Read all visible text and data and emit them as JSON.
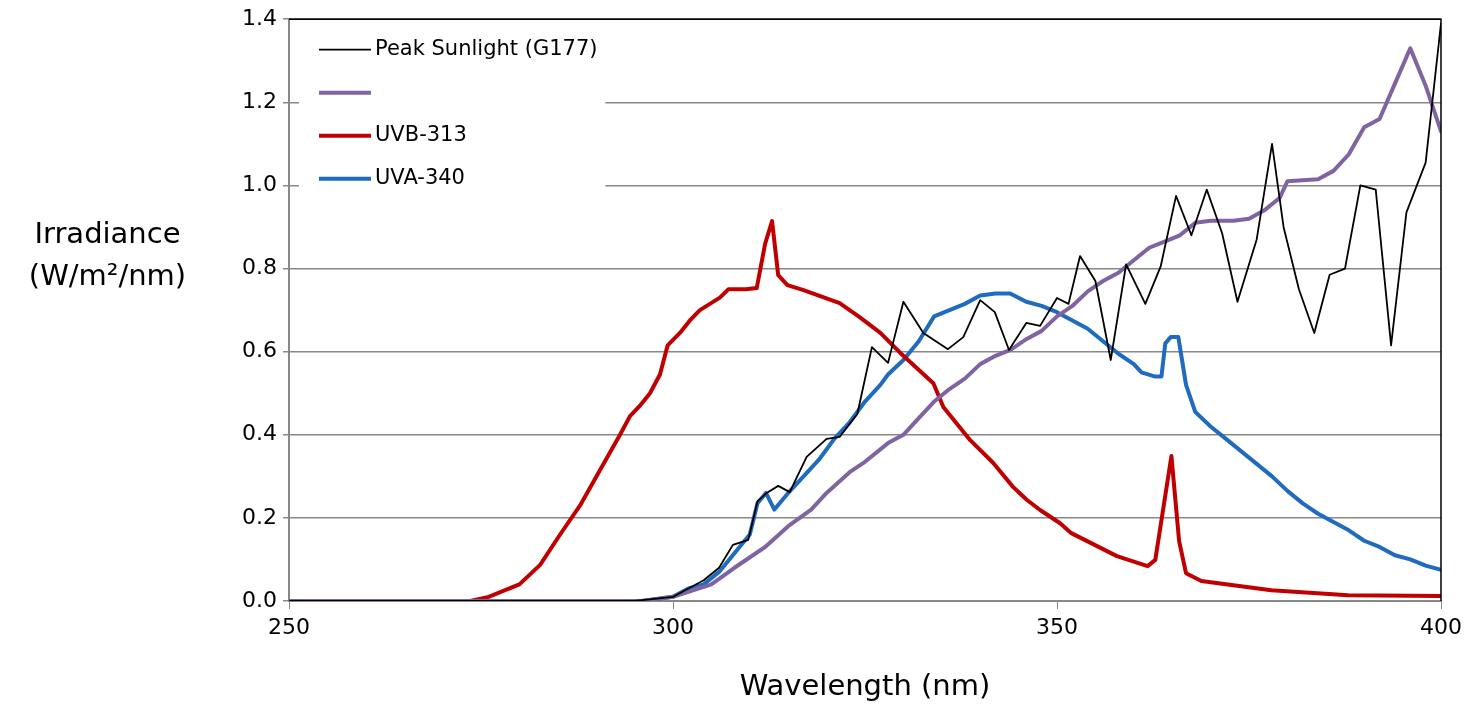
{
  "chart_data": {
    "type": "line",
    "xlabel": "Wavelength (nm)",
    "ylabel": "Irradiance (W/m²/nm)",
    "xlim": [
      250,
      400
    ],
    "xticks": [
      250,
      300,
      350,
      400
    ],
    "ylim": [
      0,
      1.4
    ],
    "yticks": [
      {
        "value": 0,
        "label": "0.0"
      },
      0.2,
      0.4,
      0.6,
      0.8,
      {
        "value": 1,
        "label": "1.0"
      },
      1.2,
      1.4
    ],
    "grid": "y",
    "legend": "top left",
    "marker": "none",
    "line_style": "solid",
    "series": [
      {
        "name": "Peak Sunlight (G177)",
        "color": "#000000",
        "x": [
          250,
          295,
          300,
          302,
          304,
          306,
          307.8,
          309.8,
          311,
          312.2,
          313.7,
          315.2,
          317.4,
          320,
          321.7,
          324,
          325.9,
          328,
          330,
          332.6,
          335.8,
          337.8,
          340,
          341.9,
          343.75,
          346,
          347.8,
          350,
          351.5,
          353,
          355,
          357,
          359,
          361.5,
          363.5,
          365.5,
          367.5,
          369.5,
          371.5,
          373.5,
          376,
          378,
          379.5,
          381.5,
          383.5,
          385.5,
          387.5,
          389.5,
          391.5,
          393.5,
          395.5,
          398,
          400
        ],
        "values": [
          0,
          0,
          0.01,
          0.03,
          0.05,
          0.08,
          0.135,
          0.147,
          0.24,
          0.26,
          0.277,
          0.262,
          0.347,
          0.39,
          0.395,
          0.45,
          0.611,
          0.573,
          0.72,
          0.645,
          0.606,
          0.635,
          0.724,
          0.695,
          0.604,
          0.669,
          0.662,
          0.729,
          0.715,
          0.83,
          0.77,
          0.58,
          0.81,
          0.715,
          0.805,
          0.975,
          0.88,
          0.99,
          0.885,
          0.72,
          0.87,
          1.1,
          0.9,
          0.75,
          0.645,
          0.785,
          0.8,
          1.0,
          0.99,
          0.615,
          0.935,
          1.055,
          1.39
        ]
      },
      {
        "color": "#8064a2",
        "x": [
          250,
          296,
          300,
          305,
          308,
          312,
          315,
          318,
          320,
          323,
          325,
          328,
          330,
          332,
          334,
          336,
          338,
          340,
          342,
          344,
          346,
          348,
          350,
          352,
          354,
          356,
          358,
          360,
          362,
          364,
          366,
          368,
          370,
          373,
          375,
          377,
          379,
          380,
          384,
          386,
          388,
          390,
          392,
          394,
          396,
          398,
          400
        ],
        "values": [
          0,
          0,
          0.01,
          0.04,
          0.08,
          0.13,
          0.18,
          0.22,
          0.26,
          0.31,
          0.335,
          0.38,
          0.4,
          0.44,
          0.48,
          0.51,
          0.535,
          0.57,
          0.59,
          0.605,
          0.63,
          0.65,
          0.685,
          0.71,
          0.745,
          0.77,
          0.79,
          0.82,
          0.85,
          0.865,
          0.88,
          0.91,
          0.915,
          0.915,
          0.92,
          0.94,
          0.97,
          1.01,
          1.015,
          1.035,
          1.075,
          1.14,
          1.16,
          1.245,
          1.33,
          1.24,
          1.13
        ]
      },
      {
        "name": "UVB-313",
        "color": "#c00000",
        "x": [
          250,
          273.6,
          276,
          280,
          282.7,
          285.3,
          287.9,
          290.5,
          293.1,
          294.4,
          295.7,
          297,
          298.3,
          299.3,
          300.9,
          302.2,
          303.5,
          304.8,
          306.1,
          307.2,
          309.5,
          310.9,
          312,
          312.9,
          313.7,
          314.9,
          317,
          321.7,
          324.3,
          327,
          329.6,
          333.9,
          335.2,
          338.7,
          341.7,
          344.3,
          346.1,
          347.8,
          350.4,
          351.8,
          357.8,
          361.8,
          362.8,
          364.9,
          365.9,
          366.8,
          368.8,
          377.9,
          387.9,
          400
        ],
        "values": [
          0,
          0,
          0.01,
          0.04,
          0.087,
          0.16,
          0.23,
          0.315,
          0.4,
          0.445,
          0.47,
          0.5,
          0.545,
          0.615,
          0.645,
          0.675,
          0.7,
          0.715,
          0.73,
          0.75,
          0.75,
          0.753,
          0.86,
          0.914,
          0.784,
          0.76,
          0.748,
          0.717,
          0.683,
          0.645,
          0.597,
          0.524,
          0.467,
          0.387,
          0.332,
          0.274,
          0.243,
          0.219,
          0.187,
          0.164,
          0.108,
          0.084,
          0.099,
          0.349,
          0.144,
          0.067,
          0.048,
          0.026,
          0.014,
          0.012
        ]
      },
      {
        "name": "UVA-340",
        "color": "#1f6bbf",
        "x": [
          250,
          296,
          300,
          302,
          304,
          306,
          308,
          310,
          311,
          312.1,
          313.2,
          315,
          317,
          319,
          321,
          323,
          325,
          327,
          328,
          330,
          332,
          334,
          336,
          338,
          340,
          342,
          343.9,
          346,
          348,
          350,
          352,
          354,
          356,
          358,
          360,
          361,
          362.8,
          363.6,
          364.1,
          364.8,
          365.8,
          366.8,
          368,
          370,
          372,
          374,
          376,
          378,
          380,
          382,
          384,
          386,
          388,
          390,
          392,
          394,
          396,
          398,
          400
        ],
        "values": [
          0,
          0,
          0.01,
          0.03,
          0.04,
          0.07,
          0.115,
          0.16,
          0.235,
          0.26,
          0.22,
          0.26,
          0.3,
          0.34,
          0.39,
          0.43,
          0.48,
          0.52,
          0.545,
          0.58,
          0.625,
          0.685,
          0.7,
          0.715,
          0.735,
          0.74,
          0.74,
          0.72,
          0.71,
          0.695,
          0.675,
          0.655,
          0.625,
          0.595,
          0.57,
          0.55,
          0.54,
          0.54,
          0.62,
          0.635,
          0.635,
          0.52,
          0.455,
          0.42,
          0.39,
          0.36,
          0.33,
          0.3,
          0.265,
          0.235,
          0.21,
          0.19,
          0.17,
          0.145,
          0.13,
          0.11,
          0.1,
          0.085,
          0.075
        ]
      }
    ]
  }
}
